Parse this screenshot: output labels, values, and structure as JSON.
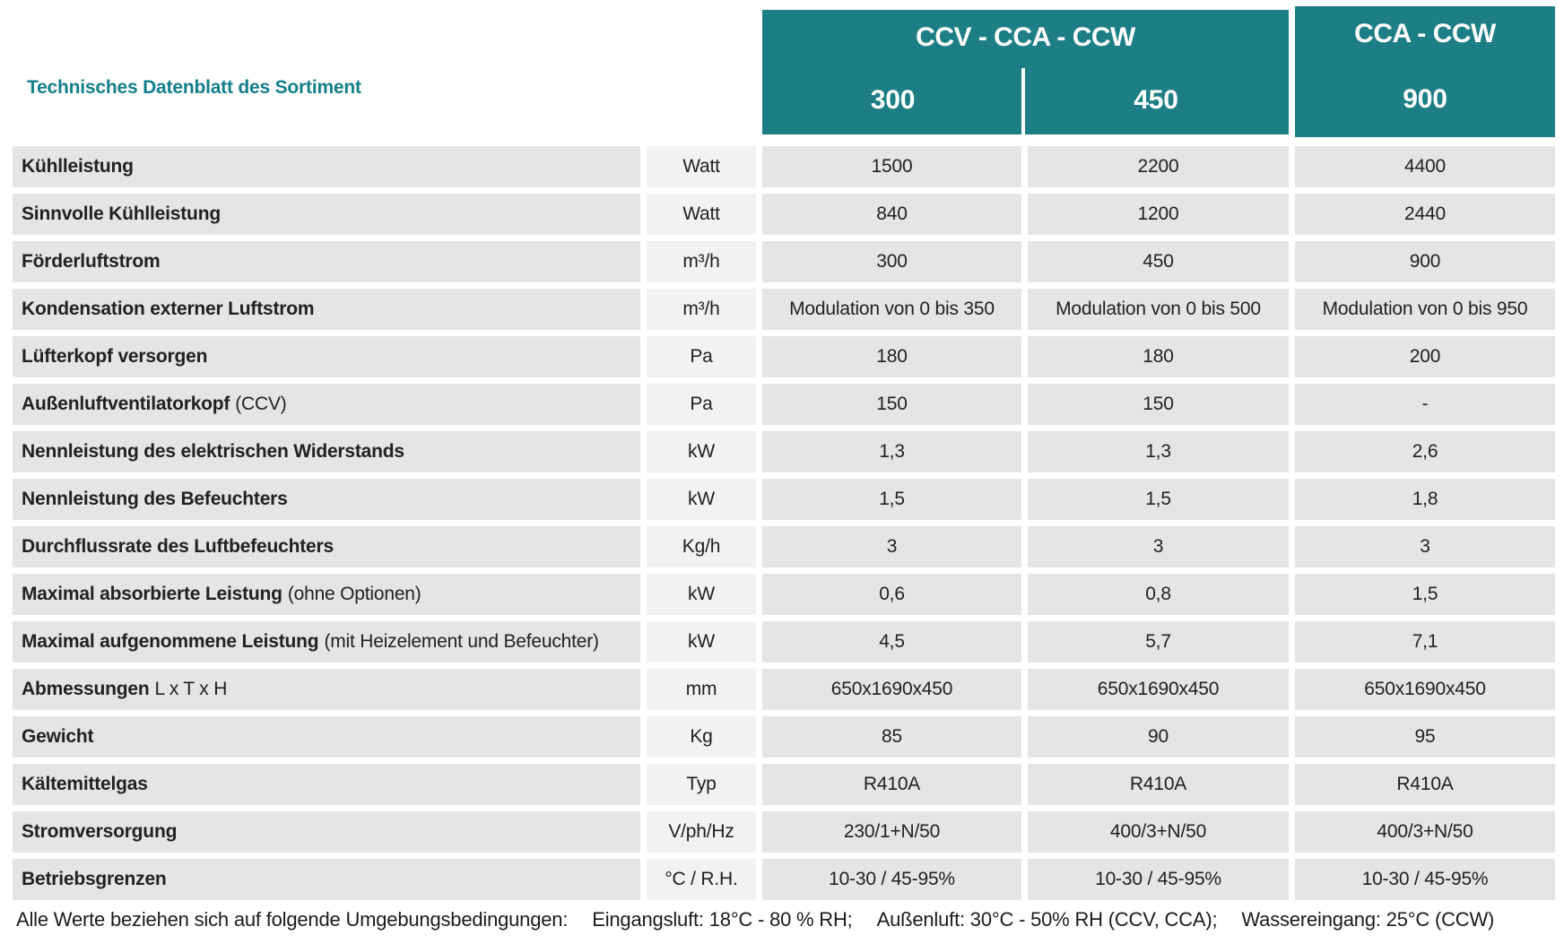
{
  "title": "Technisches Datenblatt des Sortiment",
  "header": {
    "group1": {
      "label": "CCV - CCA - CCW",
      "models": [
        "300",
        "450"
      ]
    },
    "group2": {
      "label": "CCA - CCW",
      "model": "900"
    }
  },
  "columns": [
    "300",
    "450",
    "900"
  ],
  "rows": [
    {
      "label": "Kühlleistung",
      "note": "",
      "unit": "Watt",
      "values": [
        "1500",
        "2200",
        "4400"
      ]
    },
    {
      "label": "Sinnvolle Kühlleistung",
      "note": "",
      "unit": "Watt",
      "values": [
        "840",
        "1200",
        "2440"
      ]
    },
    {
      "label": "Förderluftstrom",
      "note": "",
      "unit": "m³/h",
      "values": [
        "300",
        "450",
        "900"
      ]
    },
    {
      "label": "Kondensation externer Luftstrom",
      "note": "",
      "unit": "m³/h",
      "values": [
        "Modulation von 0 bis 350",
        "Modulation von 0 bis 500",
        "Modulation von 0 bis 950"
      ]
    },
    {
      "label": "Lüfterkopf versorgen",
      "note": "",
      "unit": "Pa",
      "values": [
        "180",
        "180",
        "200"
      ]
    },
    {
      "label": "Außenluftventilatorkopf",
      "note": "(CCV)",
      "unit": "Pa",
      "values": [
        "150",
        "150",
        "-"
      ]
    },
    {
      "label": "Nennleistung des elektrischen Widerstands",
      "note": "",
      "unit": "kW",
      "values": [
        "1,3",
        "1,3",
        "2,6"
      ]
    },
    {
      "label": "Nennleistung des Befeuchters",
      "note": "",
      "unit": "kW",
      "values": [
        "1,5",
        "1,5",
        "1,8"
      ]
    },
    {
      "label": "Durchflussrate des Luftbefeuchters",
      "note": "",
      "unit": "Kg/h",
      "values": [
        "3",
        "3",
        "3"
      ]
    },
    {
      "label": "Maximal absorbierte Leistung",
      "note": "(ohne Optionen)",
      "unit": "kW",
      "values": [
        "0,6",
        "0,8",
        "1,5"
      ]
    },
    {
      "label": "Maximal aufgenommene Leistung",
      "note": "(mit Heizelement und Befeuchter)",
      "unit": "kW",
      "values": [
        "4,5",
        "5,7",
        "7,1"
      ]
    },
    {
      "label": "Abmessungen",
      "note": "L x T x H",
      "unit": "mm",
      "values": [
        "650x1690x450",
        "650x1690x450",
        "650x1690x450"
      ]
    },
    {
      "label": "Gewicht",
      "note": "",
      "unit": "Kg",
      "values": [
        "85",
        "90",
        "95"
      ]
    },
    {
      "label": "Kältemittelgas",
      "note": "",
      "unit": "Typ",
      "values": [
        "R410A",
        "R410A",
        "R410A"
      ]
    },
    {
      "label": "Stromversorgung",
      "note": "",
      "unit": "V/ph/Hz",
      "values": [
        "230/1+N/50",
        "400/3+N/50",
        "400/3+N/50"
      ]
    },
    {
      "label": "Betriebsgrenzen",
      "note": "",
      "unit": "°C / R.H.",
      "values": [
        "10-30 / 45-95%",
        "10-30 / 45-95%",
        "10-30 / 45-95%"
      ]
    }
  ],
  "footnote": {
    "intro": "Alle Werte beziehen sich auf folgende Umgebungsbedingungen:",
    "items": [
      "Eingangsluft: 18°C - 80 % RH;",
      "Außenluft: 30°C - 50% RH (CCV, CCA);",
      "Wassereingang: 25°C (CCW)"
    ]
  },
  "colors": {
    "teal_header": "#1D7F85",
    "title_teal": "#147F8A",
    "cell_gray": "#E4E5E5",
    "unit_cell_gray": "#F1F2F2",
    "text": "#232021"
  }
}
